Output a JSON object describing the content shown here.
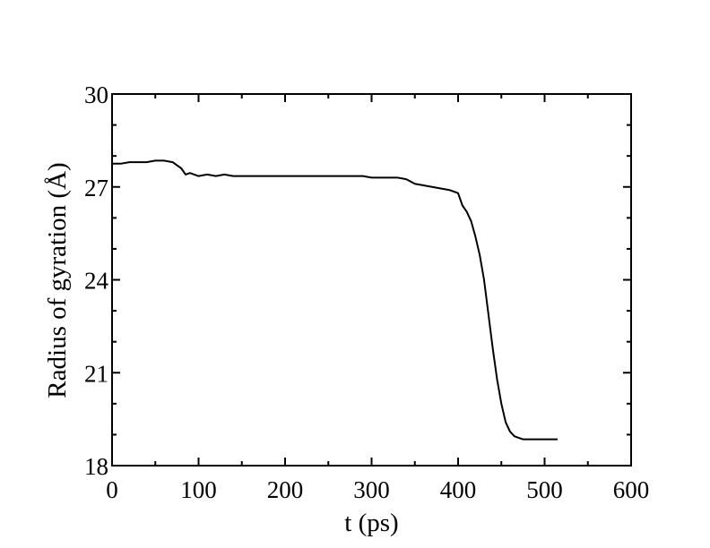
{
  "chart_data": {
    "type": "line",
    "title": "",
    "xlabel": "t (ps)",
    "ylabel": "Radius of gyration (Å)",
    "xlim": [
      0,
      600
    ],
    "ylim": [
      18,
      30
    ],
    "xticks": [
      0,
      100,
      200,
      300,
      400,
      500,
      600
    ],
    "yticks": [
      18,
      21,
      24,
      27,
      30
    ],
    "xtick_labels": [
      "0",
      "100",
      "200",
      "300",
      "400",
      "500",
      "600"
    ],
    "ytick_labels": [
      "18",
      "21",
      "24",
      "27",
      "30"
    ],
    "grid": false,
    "legend": "none",
    "line_color": "#000000",
    "series": [
      {
        "x": [
          0,
          10,
          20,
          30,
          40,
          50,
          60,
          70,
          80,
          85,
          90,
          100,
          110,
          120,
          130,
          140,
          150,
          160,
          170,
          180,
          190,
          200,
          210,
          220,
          230,
          240,
          250,
          260,
          270,
          280,
          290,
          300,
          310,
          320,
          330,
          340,
          350,
          360,
          370,
          380,
          390,
          400,
          405,
          410,
          415,
          420,
          425,
          430,
          435,
          440,
          445,
          450,
          455,
          460,
          465,
          470,
          475,
          480,
          490,
          500,
          510,
          515
        ],
        "y": [
          27.75,
          27.75,
          27.8,
          27.8,
          27.8,
          27.85,
          27.85,
          27.8,
          27.6,
          27.4,
          27.45,
          27.35,
          27.4,
          27.35,
          27.4,
          27.35,
          27.35,
          27.35,
          27.35,
          27.35,
          27.35,
          27.35,
          27.35,
          27.35,
          27.35,
          27.35,
          27.35,
          27.35,
          27.35,
          27.35,
          27.35,
          27.3,
          27.3,
          27.3,
          27.3,
          27.25,
          27.1,
          27.05,
          27.0,
          26.95,
          26.9,
          26.8,
          26.4,
          26.2,
          25.9,
          25.4,
          24.8,
          24.0,
          22.9,
          21.8,
          20.8,
          20.0,
          19.4,
          19.1,
          18.95,
          18.9,
          18.85,
          18.85,
          18.85,
          18.85,
          18.85,
          18.85
        ]
      }
    ]
  }
}
